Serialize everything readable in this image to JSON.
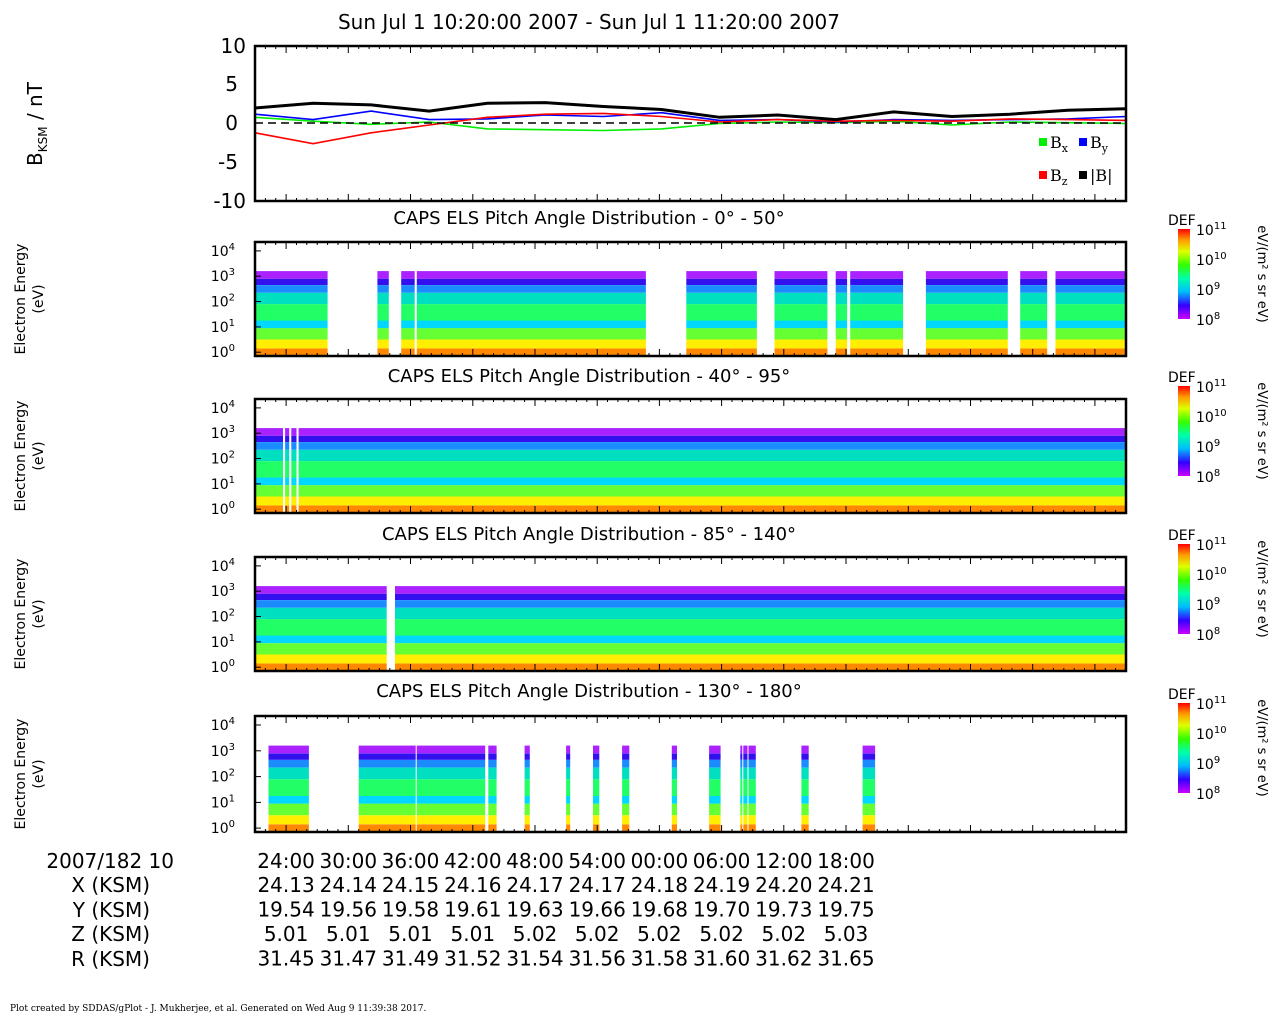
{
  "title": "Sun Jul 1 10:20:00 2007 - Sun Jul 1 11:20:00 2007",
  "footer": "Plot created by SDDAS/gPlot - J. Mukherjee, et al.  Generated on Wed Aug 9 11:39:38 2017.",
  "chart_data": [
    {
      "type": "line",
      "ylabel": "B",
      "ylabel_sub": "KSM",
      "ylabel_unit": " / nT",
      "ylim": [
        -10,
        10
      ],
      "yticks": [
        "10",
        "5",
        "0",
        "-5",
        "-10"
      ],
      "x_minutes": [
        0,
        4,
        8,
        12,
        16,
        20,
        24,
        28,
        32,
        36,
        40,
        44,
        48,
        52,
        56,
        60
      ],
      "series": [
        {
          "name": "Bx",
          "color": "#00ee00",
          "values": [
            0.8,
            0.3,
            -0.1,
            0.2,
            -0.7,
            -0.8,
            -0.9,
            -0.7,
            0.0,
            0.2,
            0.1,
            0.3,
            -0.2,
            0.2,
            0.1,
            0.0
          ]
        },
        {
          "name": "By",
          "color": "#0000ff",
          "values": [
            1.2,
            0.5,
            1.6,
            0.5,
            0.6,
            1.1,
            0.9,
            1.4,
            0.4,
            0.5,
            0.2,
            0.5,
            0.4,
            0.5,
            0.6,
            0.9
          ]
        },
        {
          "name": "Bz",
          "color": "#ff0000",
          "values": [
            -1.2,
            -2.6,
            -1.2,
            -0.2,
            0.8,
            1.2,
            1.3,
            0.9,
            0.2,
            0.5,
            0.3,
            0.4,
            0.3,
            0.6,
            0.5,
            0.4
          ]
        },
        {
          "name": "|B|",
          "color": "#000000",
          "values": [
            2.0,
            2.6,
            2.4,
            1.6,
            2.6,
            2.7,
            2.2,
            1.8,
            0.8,
            1.1,
            0.5,
            1.5,
            0.9,
            1.2,
            1.7,
            1.9
          ]
        }
      ]
    },
    {
      "type": "heatmap",
      "title": "CAPS ELS Pitch Angle Distribution - 0° - 50°",
      "ylabel": "Electron Energy (eV)",
      "colorbar": "DEF",
      "colorbar_unit": "eV/(m² s sr eV)",
      "clim_log10": [
        8,
        11
      ],
      "yticks_log10": [
        0,
        1,
        2,
        3,
        4
      ],
      "gaps_minutes": [
        [
          7.0,
          11.8
        ],
        [
          12.9,
          14.1
        ],
        [
          15.4,
          15.6
        ],
        [
          37.7,
          41.6
        ],
        [
          48.4,
          50.1
        ],
        [
          55.2,
          56.0
        ],
        [
          57.1,
          57.4
        ],
        [
          62.5,
          64.7
        ],
        [
          72.6,
          73.8
        ],
        [
          76.4,
          77.2
        ]
      ]
    },
    {
      "type": "heatmap",
      "title": "CAPS ELS Pitch Angle Distribution - 40° - 95°",
      "ylabel": "Electron Energy (eV)",
      "colorbar": "DEF",
      "colorbar_unit": "eV/(m² s sr eV)",
      "clim_log10": [
        8,
        11
      ],
      "yticks_log10": [
        0,
        1,
        2,
        3,
        4
      ],
      "gaps_minutes": [
        [
          2.7,
          2.9
        ],
        [
          3.3,
          3.5
        ],
        [
          4.0,
          4.2
        ]
      ]
    },
    {
      "type": "heatmap",
      "title": "CAPS ELS Pitch Angle Distribution - 85° - 140°",
      "ylabel": "Electron Energy (eV)",
      "colorbar": "DEF",
      "colorbar_unit": "eV/(m² s sr eV)",
      "clim_log10": [
        8,
        11
      ],
      "yticks_log10": [
        0,
        1,
        2,
        3,
        4
      ],
      "gaps_minutes": [
        [
          12.7,
          13.5
        ]
      ]
    },
    {
      "type": "heatmap",
      "title": "CAPS ELS Pitch Angle Distribution - 130° - 180°",
      "ylabel": "Electron Energy (eV)",
      "colorbar": "DEF",
      "colorbar_unit": "eV/(m² s sr eV)",
      "clim_log10": [
        8,
        11
      ],
      "yticks_log10": [
        0,
        1,
        2,
        3,
        4
      ],
      "gaps_minutes": [
        [
          0.0,
          1.3
        ],
        [
          5.2,
          10.0
        ],
        [
          15.5,
          15.6
        ],
        [
          22.2,
          22.5
        ],
        [
          23.3,
          26.0
        ],
        [
          26.5,
          30.0
        ],
        [
          30.4,
          32.6
        ],
        [
          33.2,
          35.4
        ],
        [
          36.1,
          40.2
        ],
        [
          40.7,
          43.8
        ],
        [
          44.9,
          46.8
        ],
        [
          47.0,
          47.1
        ],
        [
          47.5,
          47.6
        ],
        [
          48.3,
          52.7
        ],
        [
          53.4,
          58.6
        ],
        [
          59.8,
          84.0
        ]
      ]
    }
  ],
  "time_axis": {
    "header": "2007/182 10",
    "ticks": [
      "24:00",
      "30:00",
      "36:00",
      "42:00",
      "48:00",
      "54:00",
      "00:00",
      "06:00",
      "12:00",
      "18:00"
    ],
    "rows": [
      {
        "label": "X (KSM)",
        "values": [
          "24.13",
          "24.14",
          "24.15",
          "24.16",
          "24.17",
          "24.17",
          "24.18",
          "24.19",
          "24.20",
          "24.21"
        ]
      },
      {
        "label": "Y (KSM)",
        "values": [
          "19.54",
          "19.56",
          "19.58",
          "19.61",
          "19.63",
          "19.66",
          "19.68",
          "19.70",
          "19.73",
          "19.75"
        ]
      },
      {
        "label": "Z (KSM)",
        "values": [
          "5.01",
          "5.01",
          "5.01",
          "5.01",
          "5.02",
          "5.02",
          "5.02",
          "5.02",
          "5.02",
          "5.03"
        ]
      },
      {
        "label": "R (KSM)",
        "values": [
          "31.45",
          "31.47",
          "31.49",
          "31.52",
          "31.54",
          "31.56",
          "31.58",
          "31.60",
          "31.62",
          "31.65"
        ]
      }
    ]
  }
}
